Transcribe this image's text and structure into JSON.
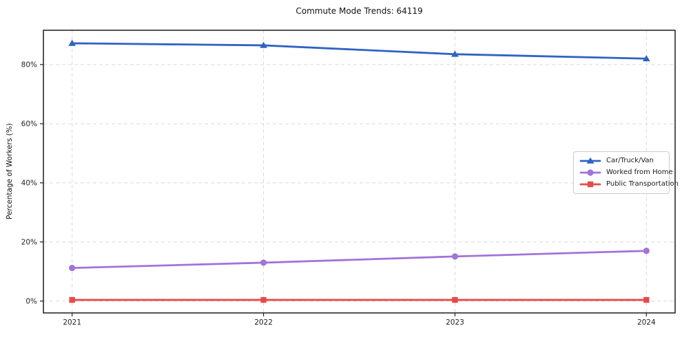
{
  "chart_data": {
    "type": "line",
    "title": "Commute Mode Trends: 64119",
    "xlabel": "",
    "ylabel": "Percentage of Workers (%)",
    "categories": [
      "2021",
      "2022",
      "2023",
      "2024"
    ],
    "series": [
      {
        "name": "Car/Truck/Van",
        "color": "#2f63c2",
        "marker": "triangle-up",
        "values": [
          87.2,
          86.5,
          83.5,
          82.0
        ]
      },
      {
        "name": "Worked from Home",
        "color": "#a273d9",
        "marker": "circle",
        "values": [
          11.2,
          13.0,
          15.1,
          17.0
        ]
      },
      {
        "name": "Public Transportation",
        "color": "#e64a4a",
        "marker": "square",
        "values": [
          0.4,
          0.4,
          0.4,
          0.4
        ]
      }
    ],
    "yticks": {
      "values": [
        0,
        20,
        40,
        60,
        80
      ],
      "labels": [
        "0%",
        "20%",
        "40%",
        "60%",
        "80%"
      ]
    },
    "xlim": [
      2020.85,
      2024.15
    ],
    "x_numeric": [
      2021,
      2022,
      2023,
      2024
    ],
    "ylim": [
      -4,
      91.6
    ],
    "grid": true,
    "grid_style": "dashed",
    "legend_position": "center-right",
    "colors": {
      "grid": "#d9d9d9",
      "spine": "#1c1c1c",
      "tick_text": "#222222",
      "background": "#ffffff"
    }
  }
}
